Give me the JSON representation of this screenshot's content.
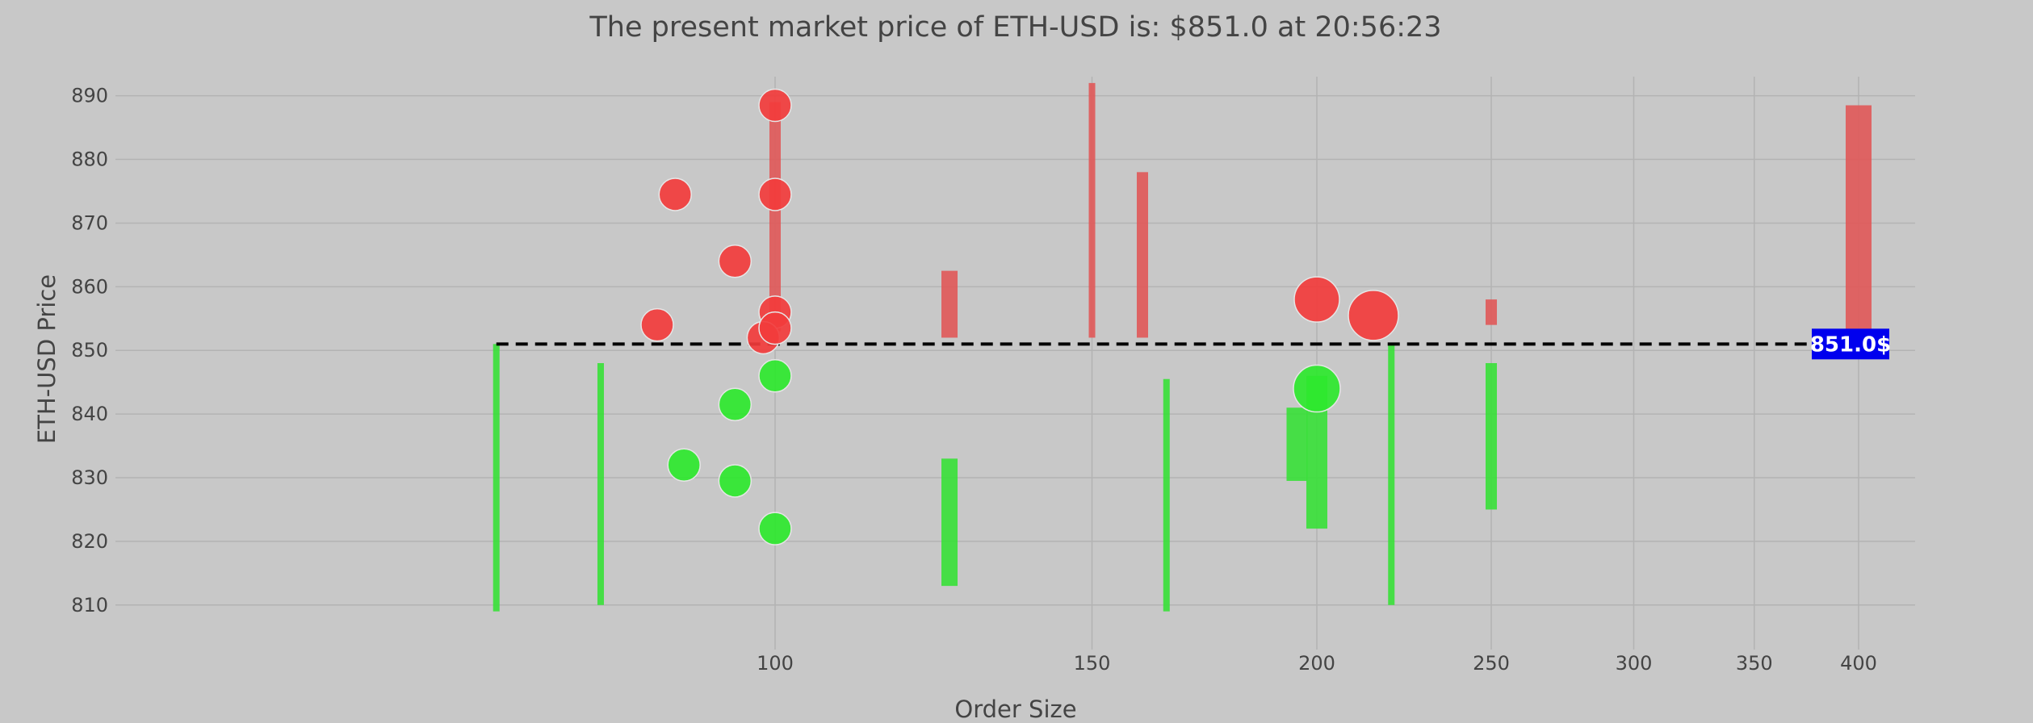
{
  "chart_data": {
    "type": "scatter",
    "title": "The present market price of ETH-USD is: $851.0 at 20:56:23",
    "xlabel": "Order Size",
    "ylabel": "ETH-USD Price",
    "x_scale": "log",
    "xlim": [
      43,
      430
    ],
    "ylim": [
      803,
      893
    ],
    "x_ticks": [
      100,
      150,
      200,
      250,
      300,
      350,
      400
    ],
    "y_ticks": [
      810,
      820,
      830,
      840,
      850,
      860,
      870,
      880,
      890
    ],
    "grid": true,
    "legend": "none",
    "colors": {
      "sell_bubble": "#f23c3c",
      "sell_bar": "#e05a5a",
      "buy_bubble": "#2ee82e",
      "buy_bar": "#3be03b",
      "price_line": "#000000",
      "price_label_bg": "#0000ee",
      "background": "#c8c8c8"
    },
    "current_price": 851.0,
    "current_price_label": "851.0$",
    "series": [
      {
        "kind": "sell-bars",
        "points": [
          {
            "x": 100,
            "y_low": 853,
            "y_high": 889,
            "w": 2
          },
          {
            "x": 125,
            "y_low": 852,
            "y_high": 862.5,
            "w": 3
          },
          {
            "x": 150,
            "y_low": 852,
            "y_high": 892,
            "w": 1
          },
          {
            "x": 160,
            "y_low": 852,
            "y_high": 878,
            "w": 2
          },
          {
            "x": 250,
            "y_low": 854,
            "y_high": 858,
            "w": 2
          },
          {
            "x": 400,
            "y_low": 853,
            "y_high": 888.5,
            "w": 5
          }
        ]
      },
      {
        "kind": "buy-bars",
        "points": [
          {
            "x": 70,
            "y_low": 809,
            "y_high": 851,
            "w": 1
          },
          {
            "x": 80,
            "y_low": 810,
            "y_high": 848,
            "w": 1
          },
          {
            "x": 125,
            "y_low": 813,
            "y_high": 833,
            "w": 3
          },
          {
            "x": 165,
            "y_low": 809,
            "y_high": 845.5,
            "w": 1
          },
          {
            "x": 195,
            "y_low": 829.5,
            "y_high": 841,
            "w": 4
          },
          {
            "x": 200,
            "y_low": 822,
            "y_high": 846,
            "w": 4
          },
          {
            "x": 220,
            "y_low": 810,
            "y_high": 851,
            "w": 1
          },
          {
            "x": 250,
            "y_low": 825,
            "y_high": 848,
            "w": 2
          }
        ]
      },
      {
        "kind": "sell-bubbles",
        "points": [
          {
            "x": 100,
            "y": 888.5,
            "s": 1
          },
          {
            "x": 88,
            "y": 874.5,
            "s": 1
          },
          {
            "x": 100,
            "y": 874.5,
            "s": 1
          },
          {
            "x": 95,
            "y": 864,
            "s": 1
          },
          {
            "x": 86,
            "y": 854,
            "s": 1
          },
          {
            "x": 100,
            "y": 856,
            "s": 1
          },
          {
            "x": 98.5,
            "y": 852,
            "s": 1
          },
          {
            "x": 100,
            "y": 853.5,
            "s": 1
          },
          {
            "x": 200,
            "y": 858,
            "s": 1.4
          },
          {
            "x": 215,
            "y": 855.5,
            "s": 1.55
          }
        ]
      },
      {
        "kind": "buy-bubbles",
        "points": [
          {
            "x": 100,
            "y": 846,
            "s": 1
          },
          {
            "x": 95,
            "y": 841.5,
            "s": 1
          },
          {
            "x": 89,
            "y": 832,
            "s": 1
          },
          {
            "x": 95,
            "y": 829.5,
            "s": 1
          },
          {
            "x": 100,
            "y": 822,
            "s": 1
          },
          {
            "x": 200,
            "y": 844,
            "s": 1.45
          }
        ]
      }
    ]
  }
}
